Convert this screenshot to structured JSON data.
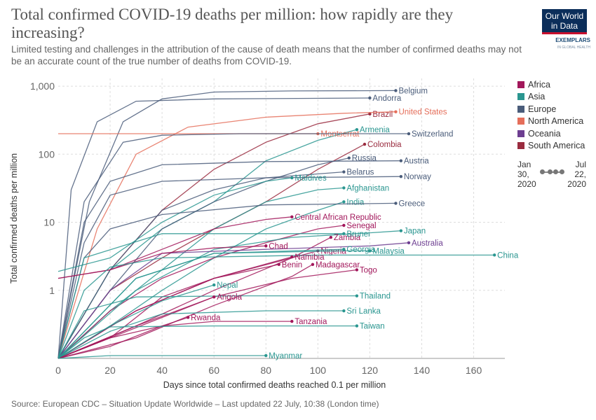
{
  "header": {
    "title": "Total confirmed COVID-19 deaths per million: how rapidly are they increasing?",
    "subtitle": "Limited testing and challenges in the attribution of the cause of death means that the number of confirmed deaths may not be an accurate count of the true number of deaths from COVID-19.",
    "logo_line1": "Our World",
    "logo_line2": "in Data",
    "logo_partner": "EXEMPLARS",
    "logo_partner_sub": "IN GLOBAL HEALTH"
  },
  "legend": [
    {
      "label": "Africa",
      "color": "#a2175b"
    },
    {
      "label": "Asia",
      "color": "#2a9690"
    },
    {
      "label": "Europe",
      "color": "#4a5c7a"
    },
    {
      "label": "North America",
      "color": "#e56e5a"
    },
    {
      "label": "Oceania",
      "color": "#6d3e91"
    },
    {
      "label": "South America",
      "color": "#9a2c3f"
    }
  ],
  "timeline": {
    "start": "Jan 30, 2020",
    "end": "Jul 22, 2020"
  },
  "footer": {
    "source": "Source: European CDC – Situation Update Worldwide – Last updated 22 July, 10:38 (London time)"
  },
  "chart_data": {
    "type": "line",
    "xlabel": "Days since total confirmed deaths reached 0.1 per million",
    "ylabel": "Total confirmed deaths per million",
    "y_scale": "log",
    "xlim": [
      0,
      172
    ],
    "ylim": [
      0.1,
      1300
    ],
    "x_ticks": [
      0,
      20,
      40,
      60,
      80,
      100,
      120,
      140,
      160
    ],
    "y_ticks": [
      {
        "v": 1000,
        "label": "1,000"
      },
      {
        "v": 100,
        "label": "100"
      },
      {
        "v": 10,
        "label": "10"
      },
      {
        "v": 1,
        "label": "1"
      }
    ],
    "series": [
      {
        "name": "Belgium",
        "continent": "Europe",
        "x": [
          0,
          12,
          25,
          40,
          60,
          90,
          130
        ],
        "y": [
          0.1,
          20,
          300,
          650,
          820,
          850,
          860
        ]
      },
      {
        "name": "Andorra",
        "continent": "Europe",
        "x": [
          0,
          5,
          15,
          30,
          60,
          120
        ],
        "y": [
          0.1,
          30,
          300,
          600,
          650,
          670
        ]
      },
      {
        "name": "Brazil",
        "continent": "South America",
        "x": [
          0,
          20,
          40,
          60,
          80,
          100,
          120
        ],
        "y": [
          0.1,
          2,
          15,
          60,
          150,
          280,
          390
        ]
      },
      {
        "name": "United States",
        "continent": "North America",
        "x": [
          0,
          15,
          30,
          50,
          80,
          110,
          130
        ],
        "y": [
          0.1,
          8,
          100,
          250,
          350,
          400,
          420
        ]
      },
      {
        "name": "Armenia",
        "continent": "Asia",
        "x": [
          0,
          20,
          40,
          60,
          80,
          100,
          115
        ],
        "y": [
          0.1,
          2,
          8,
          20,
          80,
          160,
          230
        ]
      },
      {
        "name": "Montserrat",
        "continent": "North America",
        "x": [
          0,
          100
        ],
        "y": [
          200,
          200
        ]
      },
      {
        "name": "Switzerland",
        "continent": "Europe",
        "x": [
          0,
          10,
          25,
          40,
          70,
          110,
          135
        ],
        "y": [
          0.1,
          20,
          150,
          190,
          200,
          200,
          200
        ]
      },
      {
        "name": "Colombia",
        "continent": "South America",
        "x": [
          0,
          20,
          40,
          60,
          80,
          100,
          118
        ],
        "y": [
          0.1,
          1,
          3,
          8,
          20,
          60,
          140
        ]
      },
      {
        "name": "Russia",
        "continent": "Europe",
        "x": [
          0,
          20,
          40,
          60,
          80,
          100,
          112
        ],
        "y": [
          0.1,
          1,
          8,
          20,
          40,
          70,
          88
        ]
      },
      {
        "name": "Austria",
        "continent": "Europe",
        "x": [
          0,
          10,
          20,
          40,
          80,
          132
        ],
        "y": [
          0.1,
          10,
          40,
          70,
          78,
          80
        ]
      },
      {
        "name": "Belarus",
        "continent": "Europe",
        "x": [
          0,
          20,
          40,
          60,
          80,
          110
        ],
        "y": [
          0.1,
          2,
          15,
          30,
          45,
          55
        ]
      },
      {
        "name": "Norway",
        "continent": "Europe",
        "x": [
          0,
          10,
          20,
          40,
          80,
          132
        ],
        "y": [
          0.1,
          5,
          25,
          40,
          45,
          47
        ]
      },
      {
        "name": "Maldives",
        "continent": "Asia",
        "x": [
          0,
          20,
          40,
          60,
          80,
          90
        ],
        "y": [
          1.9,
          3,
          10,
          25,
          40,
          45
        ]
      },
      {
        "name": "Afghanistan",
        "continent": "Asia",
        "x": [
          0,
          20,
          40,
          60,
          80,
          100,
          110
        ],
        "y": [
          0.1,
          0.5,
          2,
          8,
          20,
          30,
          32
        ]
      },
      {
        "name": "India",
        "continent": "Asia",
        "x": [
          0,
          20,
          40,
          60,
          80,
          100,
          110
        ],
        "y": [
          0.1,
          0.3,
          1,
          3,
          8,
          15,
          20
        ]
      },
      {
        "name": "Greece",
        "continent": "Europe",
        "x": [
          0,
          10,
          20,
          40,
          80,
          130
        ],
        "y": [
          0.1,
          3,
          8,
          13,
          18,
          19
        ]
      },
      {
        "name": "Central African Republic",
        "continent": "Africa",
        "x": [
          0,
          20,
          40,
          60,
          80,
          90
        ],
        "y": [
          1.5,
          2,
          4,
          8,
          11,
          12
        ]
      },
      {
        "name": "Senegal",
        "continent": "Africa",
        "x": [
          0,
          20,
          40,
          60,
          80,
          100,
          110
        ],
        "y": [
          0.1,
          0.5,
          1.5,
          3,
          5,
          8,
          9
        ]
      },
      {
        "name": "Japan",
        "continent": "Asia",
        "x": [
          0,
          30,
          60,
          90,
          120,
          132
        ],
        "y": [
          0.1,
          1,
          4,
          6,
          7,
          7.5
        ]
      },
      {
        "name": "Zambia",
        "continent": "Africa",
        "x": [
          0,
          30,
          60,
          90,
          105
        ],
        "y": [
          0.1,
          0.3,
          1,
          3,
          6
        ]
      },
      {
        "name": "Brunei",
        "continent": "Asia",
        "x": [
          0,
          10,
          40,
          80,
          110
        ],
        "y": [
          0.1,
          3,
          6.8,
          6.8,
          6.8
        ]
      },
      {
        "name": "Australia",
        "continent": "Oceania",
        "x": [
          0,
          20,
          40,
          80,
          120,
          135
        ],
        "y": [
          0.1,
          1,
          3.5,
          4,
          4.5,
          5
        ]
      },
      {
        "name": "Chad",
        "continent": "Africa",
        "x": [
          0,
          20,
          40,
          60,
          80
        ],
        "y": [
          1.5,
          2,
          3.5,
          4.2,
          4.5
        ]
      },
      {
        "name": "Nigeria",
        "continent": "Africa",
        "x": [
          0,
          30,
          60,
          90,
          100
        ],
        "y": [
          0.1,
          0.5,
          1.5,
          3,
          3.8
        ]
      },
      {
        "name": "Georgia",
        "continent": "Asia",
        "x": [
          0,
          30,
          60,
          100,
          110
        ],
        "y": [
          0.1,
          1.5,
          3.5,
          3.9,
          4
        ]
      },
      {
        "name": "Malaysia",
        "continent": "Asia",
        "x": [
          0,
          30,
          60,
          110,
          120
        ],
        "y": [
          0.1,
          1.5,
          3.5,
          3.8,
          3.8
        ]
      },
      {
        "name": "China",
        "continent": "Asia",
        "x": [
          0,
          10,
          20,
          40,
          100,
          168
        ],
        "y": [
          0.1,
          1,
          2.2,
          3,
          3.3,
          3.3
        ]
      },
      {
        "name": "Namibia",
        "continent": "Africa",
        "x": [
          0,
          20,
          40,
          60,
          90
        ],
        "y": [
          0.1,
          0.2,
          0.8,
          1.5,
          3.1
        ]
      },
      {
        "name": "Madagascar",
        "continent": "Africa",
        "x": [
          0,
          30,
          60,
          90,
          98
        ],
        "y": [
          0.1,
          0.2,
          0.6,
          1.6,
          2.4
        ]
      },
      {
        "name": "Benin",
        "continent": "Africa",
        "x": [
          0,
          30,
          60,
          85
        ],
        "y": [
          0.1,
          0.5,
          1.5,
          2.4
        ]
      },
      {
        "name": "Togo",
        "continent": "Africa",
        "x": [
          0,
          30,
          60,
          90,
          115
        ],
        "y": [
          0.1,
          0.3,
          0.8,
          1.5,
          2
        ]
      },
      {
        "name": "Nepal",
        "continent": "Asia",
        "x": [
          0,
          20,
          40,
          60
        ],
        "y": [
          0.1,
          0.3,
          0.7,
          1.2
        ]
      },
      {
        "name": "Thailand",
        "continent": "Asia",
        "x": [
          0,
          10,
          30,
          70,
          115
        ],
        "y": [
          0.1,
          0.5,
          0.8,
          0.83,
          0.83
        ]
      },
      {
        "name": "Angola",
        "continent": "Africa",
        "x": [
          0,
          20,
          40,
          60
        ],
        "y": [
          0.1,
          0.2,
          0.4,
          0.8
        ]
      },
      {
        "name": "Sri Lanka",
        "continent": "Asia",
        "x": [
          0,
          20,
          40,
          80,
          110
        ],
        "y": [
          0.1,
          0.25,
          0.45,
          0.5,
          0.5
        ]
      },
      {
        "name": "Rwanda",
        "continent": "Africa",
        "x": [
          0,
          20,
          40,
          50
        ],
        "y": [
          0.1,
          0.15,
          0.3,
          0.4
        ]
      },
      {
        "name": "Tanzania",
        "continent": "Africa",
        "x": [
          0,
          20,
          40,
          60,
          90
        ],
        "y": [
          0.1,
          0.2,
          0.3,
          0.35,
          0.35
        ]
      },
      {
        "name": "Taiwan",
        "continent": "Asia",
        "x": [
          0,
          10,
          20,
          60,
          115
        ],
        "y": [
          0.1,
          0.2,
          0.29,
          0.3,
          0.3
        ]
      },
      {
        "name": "Myanmar",
        "continent": "Asia",
        "x": [
          0,
          20,
          40,
          80
        ],
        "y": [
          0.1,
          0.11,
          0.11,
          0.11
        ]
      }
    ],
    "annotations": []
  }
}
